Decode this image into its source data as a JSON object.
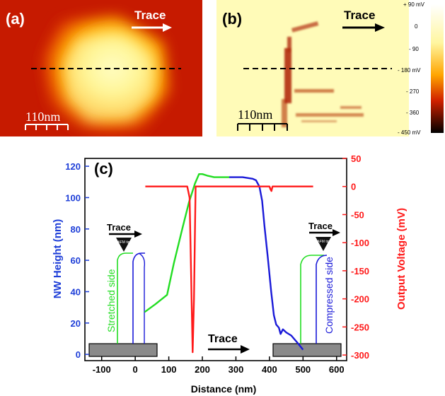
{
  "panel_a": {
    "label": "(a)",
    "trace_label": "Trace",
    "scale_label": "110nm"
  },
  "panel_b": {
    "label": "(b)",
    "trace_label": "Trace",
    "scale_label": "110nm",
    "colorbar_labels": [
      "+ 90 mV",
      "0",
      "- 90",
      "- 180 mV",
      "- 270",
      "- 360",
      "- 450 mV"
    ]
  },
  "chart_data": {
    "type": "line",
    "panel_label": "(c)",
    "xlabel": "Distance (nm)",
    "ylabel_left": "NW Height (nm)",
    "ylabel_right": "Output Voltage (mV)",
    "xlim": [
      -150,
      630
    ],
    "ylim_left": [
      -4,
      125
    ],
    "ylim_right": [
      -310,
      50
    ],
    "x_ticks": [
      -100,
      0,
      100,
      200,
      300,
      400,
      500,
      600
    ],
    "y_left_ticks": [
      0,
      20,
      40,
      60,
      80,
      100,
      120
    ],
    "y_right_ticks": [
      50,
      0,
      -50,
      -100,
      -150,
      -200,
      -250,
      -300
    ],
    "colors": {
      "height_green": "#22dd22",
      "height_blue": "#1a1ad8",
      "voltage": "#ff1a1a",
      "left_axis": "#1f3fd8",
      "right_axis": "#ff1a1a"
    },
    "series": [
      {
        "axis": "left",
        "color": "green",
        "x": [
          28,
          60,
          95,
          115,
          140,
          160,
          178,
          190,
          200,
          215,
          235,
          260,
          280
        ],
        "y": [
          27,
          32,
          38,
          58,
          80,
          97,
          109,
          115,
          115,
          114,
          113,
          113,
          113
        ]
      },
      {
        "axis": "left",
        "color": "blue",
        "x": [
          280,
          320,
          350,
          360,
          370,
          378,
          385,
          395,
          405,
          413,
          420,
          428,
          433,
          440,
          450,
          465,
          485,
          500
        ],
        "y": [
          113,
          113,
          112,
          111,
          107,
          98,
          82,
          62,
          40,
          25,
          19,
          17,
          13,
          16,
          14,
          12,
          7,
          3
        ]
      },
      {
        "axis": "right",
        "color": "red",
        "x": [
          30,
          140,
          155,
          162,
          168,
          171,
          175,
          180,
          190,
          400,
          403,
          406,
          409,
          530
        ],
        "y": [
          0,
          0,
          0,
          -20,
          -200,
          -295,
          -200,
          0,
          0,
          0,
          -5,
          -8,
          0,
          0
        ]
      }
    ],
    "annotations": {
      "trace_left": "Trace",
      "trace_right": "Trace",
      "trace_bottom": "Trace",
      "afm_tip": "AFM tip",
      "stretched_side": "Stretched side",
      "compressed_side": "Compressed side"
    }
  }
}
